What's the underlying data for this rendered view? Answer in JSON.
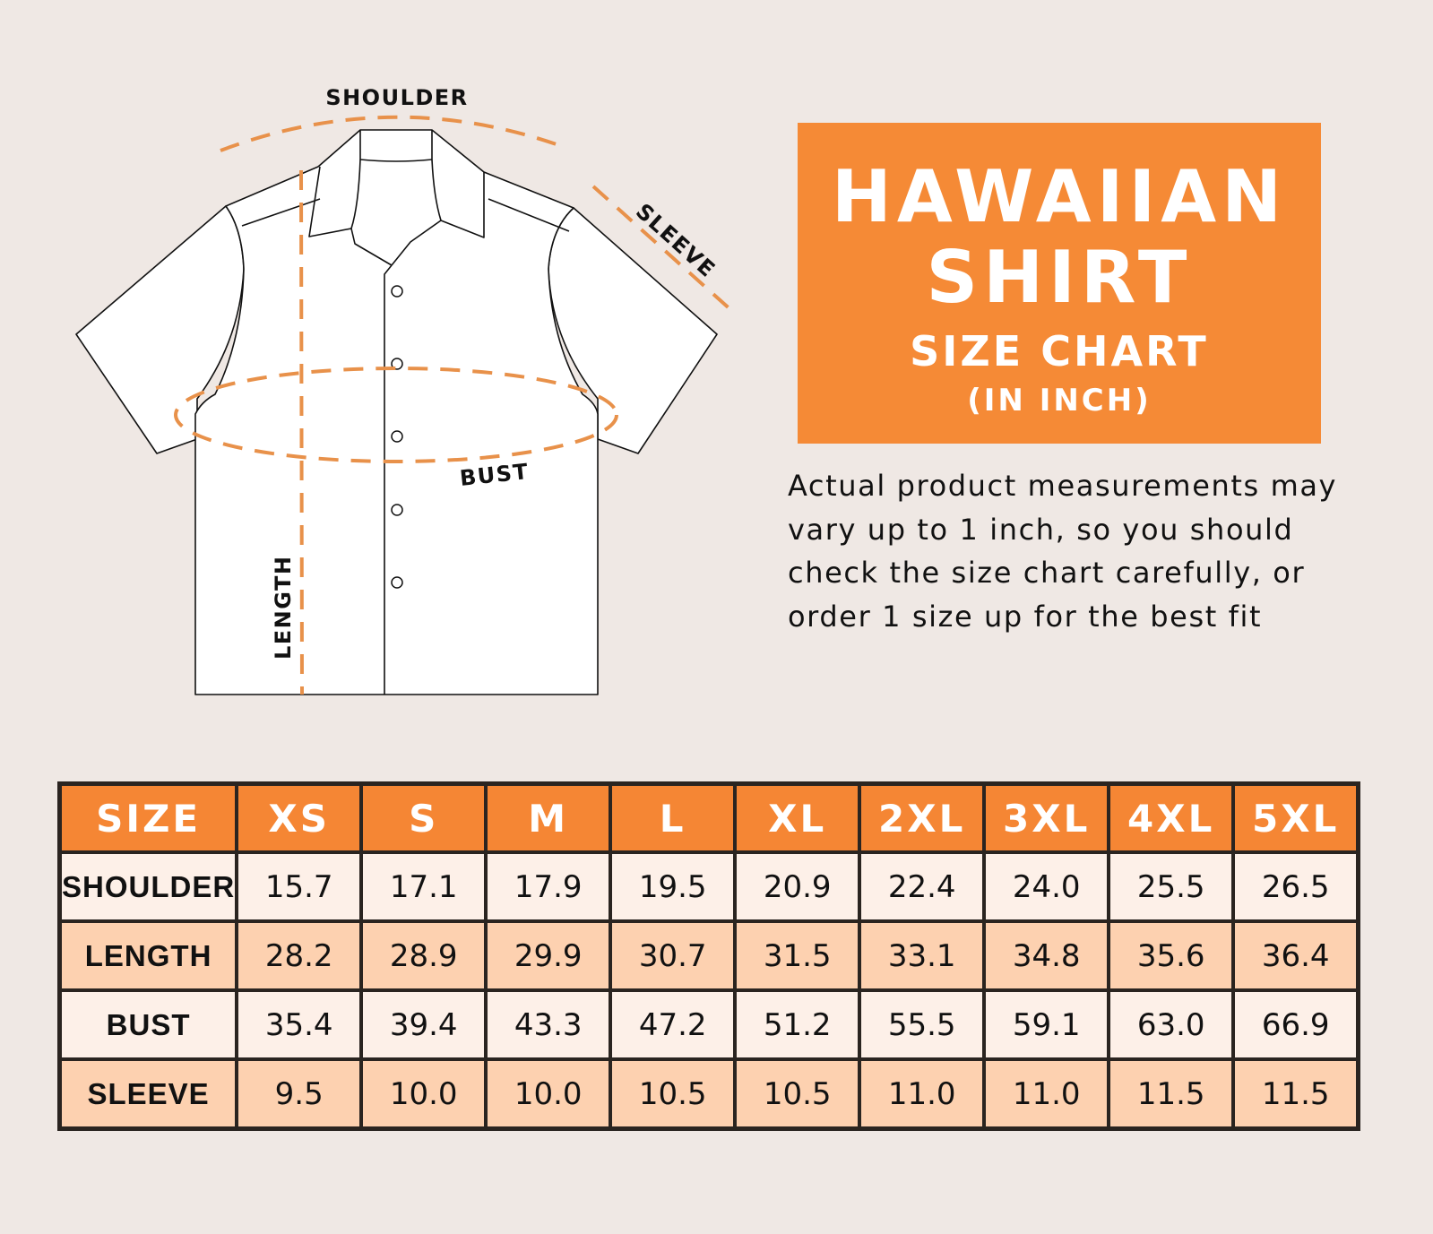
{
  "diagram": {
    "labels": {
      "shoulder": "SHOULDER",
      "sleeve": "SLEEVE",
      "bust": "BUST",
      "length": "LENGTH"
    },
    "measure_line_color": "#E8914A"
  },
  "title": {
    "line1": "HAWAIIAN",
    "line2": "SHIRT",
    "line3": "SIZE CHART",
    "line4": "(IN INCH)",
    "background": "#F58A36"
  },
  "note": "Actual product measurements may vary up to 1 inch, so you should check the size chart carefully, or order 1 size up for the best fit",
  "table": {
    "headers": [
      "SIZE",
      "XS",
      "S",
      "M",
      "L",
      "XL",
      "2XL",
      "3XL",
      "4XL",
      "5XL"
    ],
    "rows": [
      {
        "label": "SHOULDER",
        "values": [
          "15.7",
          "17.1",
          "17.9",
          "19.5",
          "20.9",
          "22.4",
          "24.0",
          "25.5",
          "26.5"
        ]
      },
      {
        "label": "LENGTH",
        "values": [
          "28.2",
          "28.9",
          "29.9",
          "30.7",
          "31.5",
          "33.1",
          "34.8",
          "35.6",
          "36.4"
        ]
      },
      {
        "label": "BUST",
        "values": [
          "35.4",
          "39.4",
          "43.3",
          "47.2",
          "51.2",
          "55.5",
          "59.1",
          "63.0",
          "66.9"
        ]
      },
      {
        "label": "SLEEVE",
        "values": [
          "9.5",
          "10.0",
          "10.0",
          "10.5",
          "10.5",
          "11.0",
          "11.0",
          "11.5",
          "11.5"
        ]
      }
    ],
    "header_color": "#F58634",
    "row_colors": [
      "#FDF0E8",
      "#FDD1B0"
    ]
  }
}
